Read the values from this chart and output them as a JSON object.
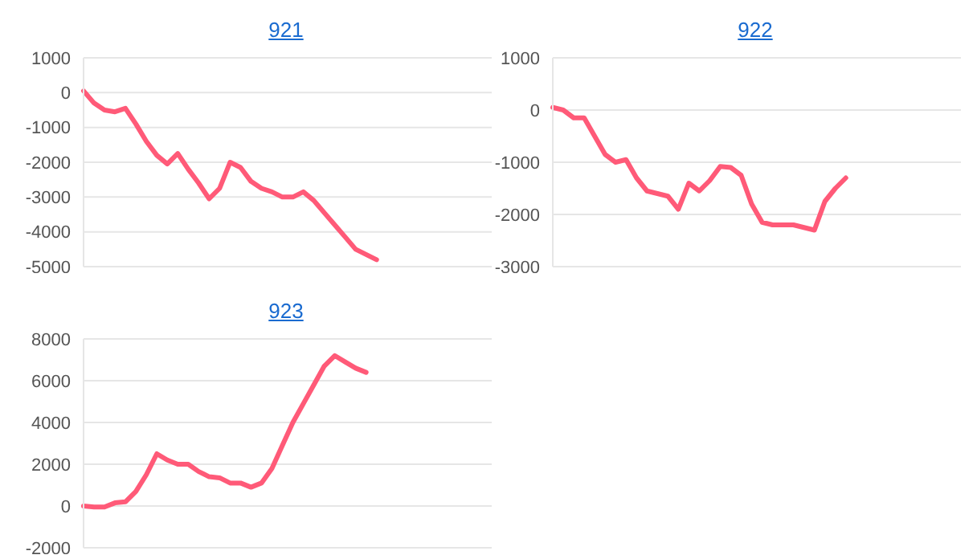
{
  "chart_data": [
    {
      "type": "line",
      "title": "921",
      "categories": [
        null,
        null,
        null,
        null,
        null,
        null,
        null,
        null,
        null,
        null,
        null,
        null,
        null,
        null,
        null,
        null,
        null,
        null,
        null,
        null,
        null,
        null,
        null,
        null,
        null,
        null,
        null,
        null,
        null,
        null,
        null,
        null,
        null,
        null,
        null,
        null,
        null,
        null,
        null,
        null
      ],
      "series": [
        {
          "color": "#ff5a78",
          "values": [
            50,
            -300,
            -500,
            -550,
            -450,
            -900,
            -1400,
            -1800,
            -2050,
            -1750,
            -2200,
            -2600,
            -3050,
            -2750,
            -2000,
            -2150,
            -2550,
            -2750,
            -2850,
            -3000,
            -3000,
            -2850,
            -3100,
            -3450,
            -3800,
            -4150,
            -4500,
            -4650,
            -4800,
            null,
            null,
            null,
            null,
            null,
            null,
            null,
            null,
            null,
            null,
            null
          ]
        }
      ],
      "ylim": [
        -5000,
        1000
      ],
      "yticks": [
        -5000,
        -4000,
        -3000,
        -2000,
        -1000,
        0,
        1000
      ],
      "grid": "y",
      "tick_labels": "y",
      "legend": false,
      "marker": "none",
      "line_style": "solid"
    },
    {
      "type": "line",
      "title": "922",
      "categories": [
        null,
        null,
        null,
        null,
        null,
        null,
        null,
        null,
        null,
        null,
        null,
        null,
        null,
        null,
        null,
        null,
        null,
        null,
        null,
        null,
        null,
        null,
        null,
        null,
        null,
        null,
        null,
        null,
        null,
        null,
        null,
        null,
        null,
        null,
        null,
        null,
        null,
        null,
        null,
        null
      ],
      "series": [
        {
          "color": "#ff5a78",
          "values": [
            50,
            0,
            -150,
            -150,
            -500,
            -850,
            -1000,
            -950,
            -1300,
            -1550,
            -1600,
            -1650,
            -1900,
            -1400,
            -1550,
            -1350,
            -1080,
            -1100,
            -1250,
            -1800,
            -2150,
            -2200,
            -2200,
            -2200,
            -2250,
            -2300,
            -1750,
            -1500,
            -1300,
            null,
            null,
            null,
            null,
            null,
            null,
            null,
            null,
            null,
            null,
            null
          ]
        }
      ],
      "ylim": [
        -3000,
        1000
      ],
      "yticks": [
        -3000,
        -2000,
        -1000,
        0,
        1000
      ],
      "grid": "y",
      "tick_labels": "y",
      "legend": false,
      "marker": "none",
      "line_style": "solid"
    },
    {
      "type": "line",
      "title": "923",
      "categories": [
        null,
        null,
        null,
        null,
        null,
        null,
        null,
        null,
        null,
        null,
        null,
        null,
        null,
        null,
        null,
        null,
        null,
        null,
        null,
        null,
        null,
        null,
        null,
        null,
        null,
        null,
        null,
        null,
        null,
        null,
        null,
        null,
        null,
        null,
        null,
        null,
        null,
        null,
        null,
        null
      ],
      "series": [
        {
          "color": "#ff5a78",
          "values": [
            0,
            -50,
            -50,
            150,
            200,
            700,
            1500,
            2500,
            2200,
            2000,
            2000,
            1650,
            1400,
            1350,
            1100,
            1100,
            900,
            1100,
            1800,
            2900,
            4000,
            4900,
            5800,
            6700,
            7200,
            6900,
            6600,
            6400,
            null,
            null,
            null,
            null,
            null,
            null,
            null,
            null,
            null,
            null,
            null,
            null
          ]
        }
      ],
      "ylim": [
        -2000,
        8000
      ],
      "yticks": [
        -2000,
        0,
        2000,
        4000,
        6000,
        8000
      ],
      "grid": "y",
      "tick_labels": "y",
      "legend": false,
      "marker": "none",
      "line_style": "solid"
    }
  ]
}
